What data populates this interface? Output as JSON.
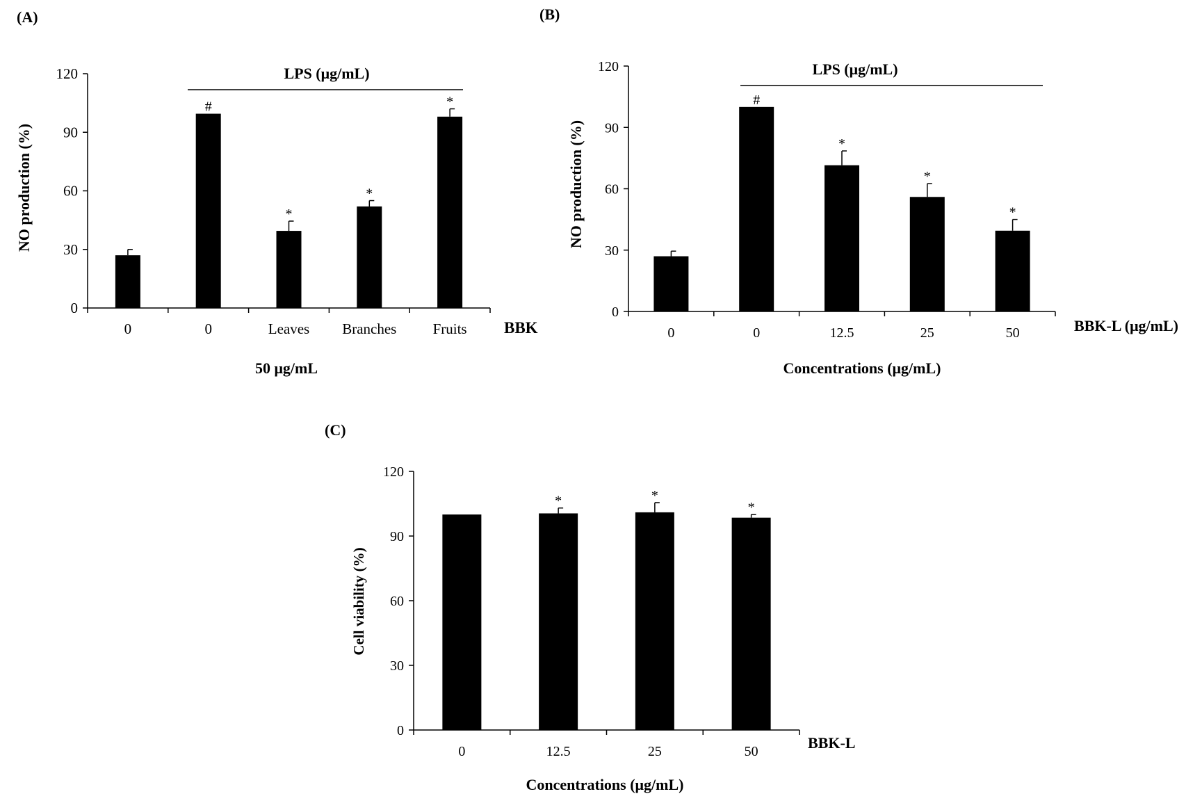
{
  "figure": {
    "panels": [
      "(A)",
      "(B)",
      "(C)"
    ]
  },
  "chart_data": [
    {
      "panel": "(A)",
      "type": "bar",
      "title": "",
      "ylabel": "NO production (%)",
      "xlabel": "50 μg/mL",
      "axis_suffix": "BBK",
      "group_label": "LPS (μg/mL)",
      "categories": [
        "0",
        "0",
        "Leaves",
        "Branches",
        "Fruits"
      ],
      "values": [
        27,
        99.5,
        39.5,
        52,
        98
      ],
      "errors": [
        3,
        0,
        5,
        3,
        4
      ],
      "markers": [
        "",
        "#",
        "*",
        "*",
        "*"
      ],
      "yticks": [
        "0",
        "30",
        "60",
        "90",
        "120"
      ],
      "ylim": [
        0,
        120
      ],
      "bar_color": "#000000"
    },
    {
      "panel": "(B)",
      "type": "bar",
      "title": "",
      "ylabel": "NO production (%)",
      "xlabel": "Concentrations (μg/mL)",
      "axis_suffix": "BBK-L (μg/mL)",
      "group_label": "LPS (μg/mL)",
      "categories": [
        "0",
        "0",
        "12.5",
        "25",
        "50"
      ],
      "values": [
        27,
        100,
        71.5,
        56,
        39.5
      ],
      "errors": [
        2.5,
        0,
        7,
        6.5,
        5.5
      ],
      "markers": [
        "",
        "#",
        "*",
        "*",
        "*"
      ],
      "yticks": [
        "0",
        "30",
        "60",
        "90",
        "120"
      ],
      "ylim": [
        0,
        120
      ],
      "bar_color": "#000000"
    },
    {
      "panel": "(C)",
      "type": "bar",
      "title": "",
      "ylabel": "Cell viability (%)",
      "xlabel": "Concentrations (μg/mL)",
      "axis_suffix": "BBK-L",
      "categories": [
        "0",
        "12.5",
        "25",
        "50"
      ],
      "values": [
        100,
        100.5,
        101,
        98.5
      ],
      "errors": [
        0,
        2.5,
        4.5,
        1.5
      ],
      "markers": [
        "",
        "*",
        "*",
        "*"
      ],
      "yticks": [
        "0",
        "30",
        "60",
        "90",
        "120"
      ],
      "ylim": [
        0,
        120
      ],
      "bar_color": "#000000"
    }
  ]
}
